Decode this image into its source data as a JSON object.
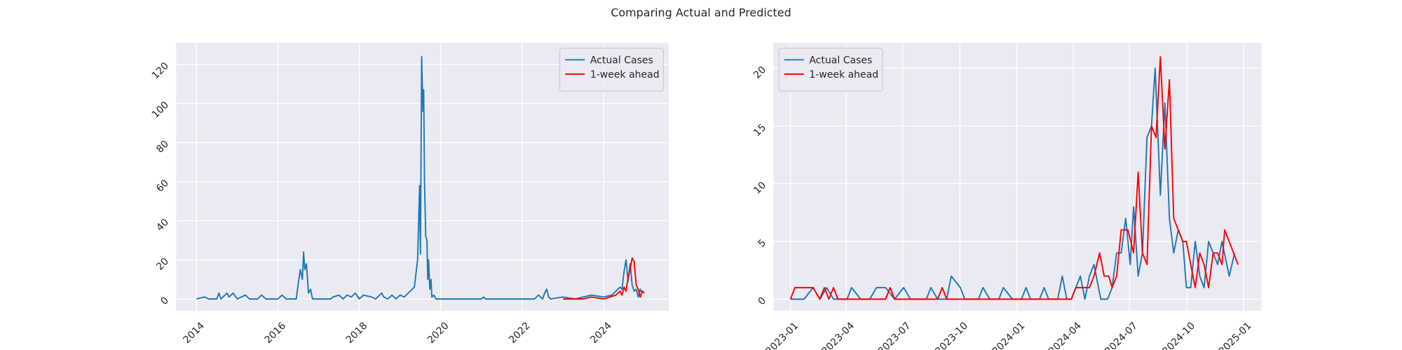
{
  "title": "Comparing Actual and Predicted",
  "chart_data": [
    {
      "type": "line",
      "grid": true,
      "legend": "upper right",
      "xlim": [
        2013.5,
        2025.6
      ],
      "ylim": [
        -6,
        131
      ],
      "xticks": [
        2014,
        2016,
        2018,
        2020,
        2022,
        2024
      ],
      "yticks": [
        0,
        20,
        40,
        60,
        80,
        100,
        120
      ],
      "series": [
        {
          "name": "Actual Cases",
          "color": "#1f77b4",
          "x": [
            2014.0,
            2014.2,
            2014.3,
            2014.5,
            2014.55,
            2014.6,
            2014.75,
            2014.8,
            2014.9,
            2015.0,
            2015.2,
            2015.3,
            2015.5,
            2015.6,
            2015.7,
            2016.0,
            2016.1,
            2016.2,
            2016.45,
            2016.5,
            2016.55,
            2016.6,
            2016.63,
            2016.66,
            2016.7,
            2016.75,
            2016.8,
            2016.85,
            2017.3,
            2017.35,
            2017.5,
            2017.6,
            2017.7,
            2017.8,
            2017.9,
            2018.0,
            2018.1,
            2018.3,
            2018.4,
            2018.55,
            2018.6,
            2018.7,
            2018.8,
            2018.9,
            2019.0,
            2019.1,
            2019.2,
            2019.35,
            2019.43,
            2019.48,
            2019.5,
            2019.53,
            2019.56,
            2019.58,
            2019.6,
            2019.63,
            2019.66,
            2019.68,
            2019.7,
            2019.73,
            2019.76,
            2019.78,
            2019.83,
            2019.88,
            2021.0,
            2021.05,
            2021.1,
            2022.3,
            2022.4,
            2022.5,
            2022.55,
            2022.6,
            2022.65,
            2022.7,
            2023.0,
            2023.3,
            2023.7,
            2024.0,
            2024.2,
            2024.3,
            2024.4,
            2024.45,
            2024.5,
            2024.55,
            2024.6,
            2024.65,
            2024.7,
            2024.75,
            2024.8,
            2024.85,
            2024.9,
            2024.95
          ],
          "values": [
            0,
            1,
            0,
            0,
            3,
            0,
            3,
            1,
            3,
            0,
            2,
            0,
            0,
            2,
            0,
            0,
            2,
            0,
            0,
            8,
            15,
            10,
            24,
            15,
            18,
            3,
            5,
            0,
            0,
            1,
            2,
            0,
            2,
            1,
            3,
            0,
            2,
            1,
            0,
            3,
            1,
            0,
            2,
            0,
            2,
            1,
            3,
            6,
            20,
            58,
            23,
            124,
            96,
            107,
            60,
            32,
            30,
            10,
            20,
            5,
            10,
            1,
            2,
            0,
            0,
            1,
            0,
            0,
            2,
            0,
            3,
            5,
            1,
            0,
            1,
            0,
            2,
            1,
            2,
            4,
            6,
            5,
            14,
            20,
            9,
            18,
            7,
            4,
            5,
            1,
            5,
            3
          ]
        },
        {
          "name": "1-week ahead",
          "color": "#ff0000",
          "x": [
            2023.0,
            2023.5,
            2023.7,
            2024.0,
            2024.3,
            2024.4,
            2024.45,
            2024.5,
            2024.55,
            2024.6,
            2024.65,
            2024.7,
            2024.75,
            2024.8,
            2024.85,
            2024.9,
            2024.95,
            2025.0
          ],
          "values": [
            0,
            0,
            1,
            0,
            2,
            4,
            2,
            6,
            4,
            11,
            15,
            21,
            19,
            7,
            5,
            1,
            4,
            3
          ]
        }
      ]
    },
    {
      "type": "line",
      "grid": true,
      "legend": "upper left",
      "xlim": [
        2022.925,
        2025.08
      ],
      "ylim": [
        -1,
        22.2
      ],
      "xticks": [
        {
          "value": 2023.0,
          "label": "2023-01"
        },
        {
          "value": 2023.247,
          "label": "2023-04"
        },
        {
          "value": 2023.496,
          "label": "2023-07"
        },
        {
          "value": 2023.748,
          "label": "2023-10"
        },
        {
          "value": 2024.0,
          "label": "2024-01"
        },
        {
          "value": 2024.249,
          "label": "2024-04"
        },
        {
          "value": 2024.497,
          "label": "2024-07"
        },
        {
          "value": 2024.751,
          "label": "2024-10"
        },
        {
          "value": 2025.0,
          "label": "2025-01"
        }
      ],
      "yticks": [
        0,
        5,
        10,
        15,
        20
      ],
      "series": [
        {
          "name": "Actual Cases",
          "color": "#1f77b4",
          "x": [
            2023.0,
            2023.06,
            2023.1,
            2023.13,
            2023.16,
            2023.19,
            2023.25,
            2023.27,
            2023.31,
            2023.35,
            2023.38,
            2023.42,
            2023.46,
            2023.5,
            2023.53,
            2023.6,
            2023.62,
            2023.65,
            2023.69,
            2023.71,
            2023.75,
            2023.77,
            2023.83,
            2023.85,
            2023.88,
            2023.92,
            2023.94,
            2023.98,
            2024.02,
            2024.04,
            2024.06,
            2024.1,
            2024.12,
            2024.14,
            2024.18,
            2024.2,
            2024.22,
            2024.24,
            2024.26,
            2024.28,
            2024.3,
            2024.32,
            2024.34,
            2024.37,
            2024.4,
            2024.42,
            2024.44,
            2024.46,
            2024.48,
            2024.5,
            2024.515,
            2024.535,
            2024.554,
            2024.574,
            2024.594,
            2024.61,
            2024.633,
            2024.653,
            2024.673,
            2024.692,
            2024.712,
            2024.732,
            2024.748,
            2024.767,
            2024.787,
            2024.807,
            2024.826,
            2024.846,
            2024.866,
            2024.886,
            2024.905,
            2024.937,
            2024.961
          ],
          "values": [
            0,
            0,
            1,
            0,
            1,
            0,
            0,
            1,
            0,
            0,
            1,
            1,
            0,
            1,
            0,
            0,
            1,
            0,
            0,
            2,
            1,
            0,
            0,
            1,
            0,
            0,
            1,
            0,
            0,
            1,
            0,
            0,
            1,
            0,
            0,
            2,
            0,
            0,
            1,
            2,
            0,
            2,
            3,
            0,
            0,
            1,
            4,
            4,
            7,
            3,
            8,
            2,
            4,
            14,
            15,
            20,
            9,
            17,
            7,
            4,
            6,
            5,
            1,
            1,
            5,
            2,
            1,
            5,
            4,
            3,
            5,
            2,
            4
          ]
        },
        {
          "name": "1-week ahead",
          "color": "#ff0000",
          "x": [
            2023.0,
            2023.02,
            2023.1,
            2023.13,
            2023.15,
            2023.17,
            2023.19,
            2023.21,
            2023.42,
            2023.44,
            2023.46,
            2023.65,
            2023.67,
            2023.69,
            2024.24,
            2024.26,
            2024.32,
            2024.34,
            2024.365,
            2024.385,
            2024.405,
            2024.42,
            2024.44,
            2024.46,
            2024.49,
            2024.515,
            2024.535,
            2024.554,
            2024.574,
            2024.594,
            2024.614,
            2024.633,
            2024.653,
            2024.673,
            2024.692,
            2024.732,
            2024.748,
            2024.767,
            2024.787,
            2024.807,
            2024.826,
            2024.846,
            2024.866,
            2024.886,
            2024.905,
            2024.917,
            2024.976
          ],
          "values": [
            0,
            1,
            1,
            0,
            1,
            0,
            1,
            0,
            0,
            1,
            0,
            0,
            1,
            0,
            0,
            1,
            1,
            2,
            4,
            2,
            2,
            1,
            2,
            6,
            6,
            4,
            11,
            4,
            3,
            15,
            14,
            21,
            13,
            19,
            7,
            5,
            5,
            3,
            1,
            4,
            3,
            1,
            4,
            4,
            3,
            6,
            3
          ]
        }
      ]
    }
  ]
}
